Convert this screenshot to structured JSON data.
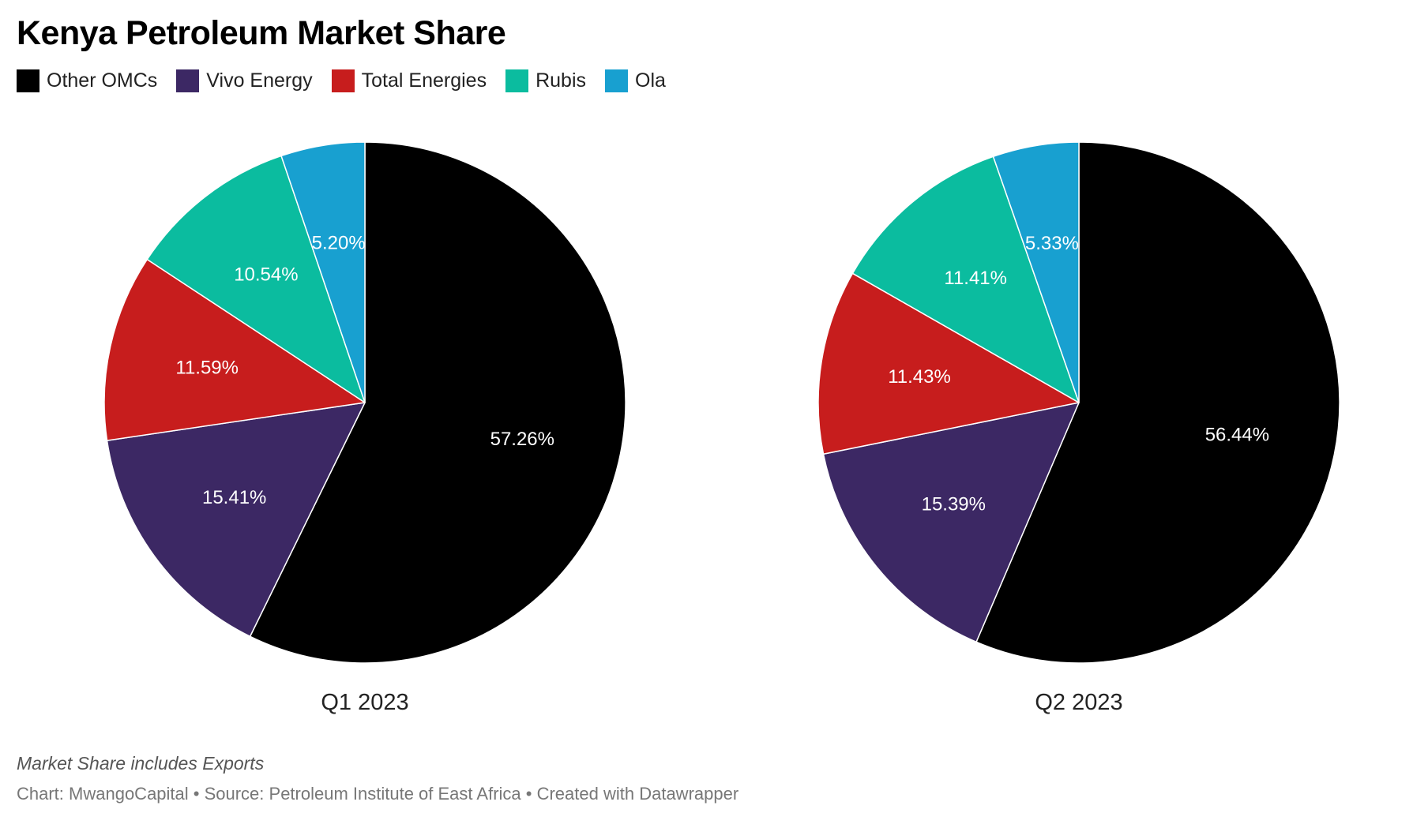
{
  "title": "Kenya Petroleum Market Share",
  "legend": [
    {
      "label": "Other OMCs",
      "color": "#000000"
    },
    {
      "label": "Vivo Energy",
      "color": "#3c2864"
    },
    {
      "label": "Total Energies",
      "color": "#c71d1d"
    },
    {
      "label": "Rubis",
      "color": "#0bbc9f"
    },
    {
      "label": "Ola",
      "color": "#18a0d0"
    }
  ],
  "note": "Market Share includes Exports",
  "credit": "Chart: MwangoCapital • Source: Petroleum Institute of East Africa • Created with Datawrapper",
  "chart_data": [
    {
      "type": "pie",
      "title": "Q1 2023",
      "slices": [
        {
          "label": "Other OMCs",
          "value": 57.26,
          "display": "57.26%",
          "color": "#000000"
        },
        {
          "label": "Vivo Energy",
          "value": 15.41,
          "display": "15.41%",
          "color": "#3c2864"
        },
        {
          "label": "Total Energies",
          "value": 11.59,
          "display": "11.59%",
          "color": "#c71d1d"
        },
        {
          "label": "Rubis",
          "value": 10.54,
          "display": "10.54%",
          "color": "#0bbc9f"
        },
        {
          "label": "Ola",
          "value": 5.2,
          "display": "5.20%",
          "color": "#18a0d0"
        }
      ]
    },
    {
      "type": "pie",
      "title": "Q2 2023",
      "slices": [
        {
          "label": "Other OMCs",
          "value": 56.44,
          "display": "56.44%",
          "color": "#000000"
        },
        {
          "label": "Vivo Energy",
          "value": 15.39,
          "display": "15.39%",
          "color": "#3c2864"
        },
        {
          "label": "Total Energies",
          "value": 11.43,
          "display": "11.43%",
          "color": "#c71d1d"
        },
        {
          "label": "Rubis",
          "value": 11.41,
          "display": "11.41%",
          "color": "#0bbc9f"
        },
        {
          "label": "Ola",
          "value": 5.33,
          "display": "5.33%",
          "color": "#18a0d0"
        }
      ]
    }
  ]
}
